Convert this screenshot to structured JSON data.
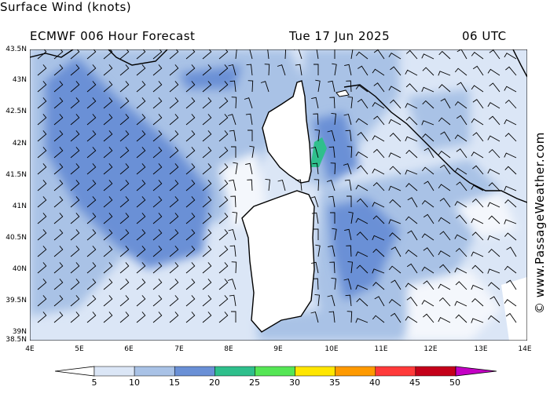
{
  "header": {
    "title": "Surface Wind (knots)",
    "subtitle": "ECMWF 006 Hour Forecast",
    "date": "Tue 17 Jun 2025",
    "time": "06 UTC"
  },
  "credit": "© www.PassageWeather.com",
  "axes": {
    "lat_labels": [
      "43.5N",
      "43N",
      "42.5N",
      "42N",
      "41.5N",
      "41N",
      "40.5N",
      "40N",
      "39.5N",
      "39N",
      "38.5N"
    ],
    "lon_labels": [
      "4E",
      "5E",
      "6E",
      "7E",
      "8E",
      "9E",
      "10E",
      "11E",
      "12E",
      "13E",
      "14E"
    ]
  },
  "colorbar": {
    "labels": [
      "5",
      "10",
      "15",
      "20",
      "25",
      "30",
      "35",
      "40",
      "45",
      "50"
    ],
    "colors": [
      "#dbe6f6",
      "#a9c2e6",
      "#6a90d6",
      "#2fbf8c",
      "#55e655",
      "#ffe600",
      "#ff9a00",
      "#ff3a3a",
      "#c4001a",
      "#c400c4"
    ]
  },
  "map": {
    "region": "Western Mediterranean – Corsica & Sardinia",
    "lat_range": [
      38.5,
      43.5
    ],
    "lon_range": [
      4,
      14
    ]
  }
}
